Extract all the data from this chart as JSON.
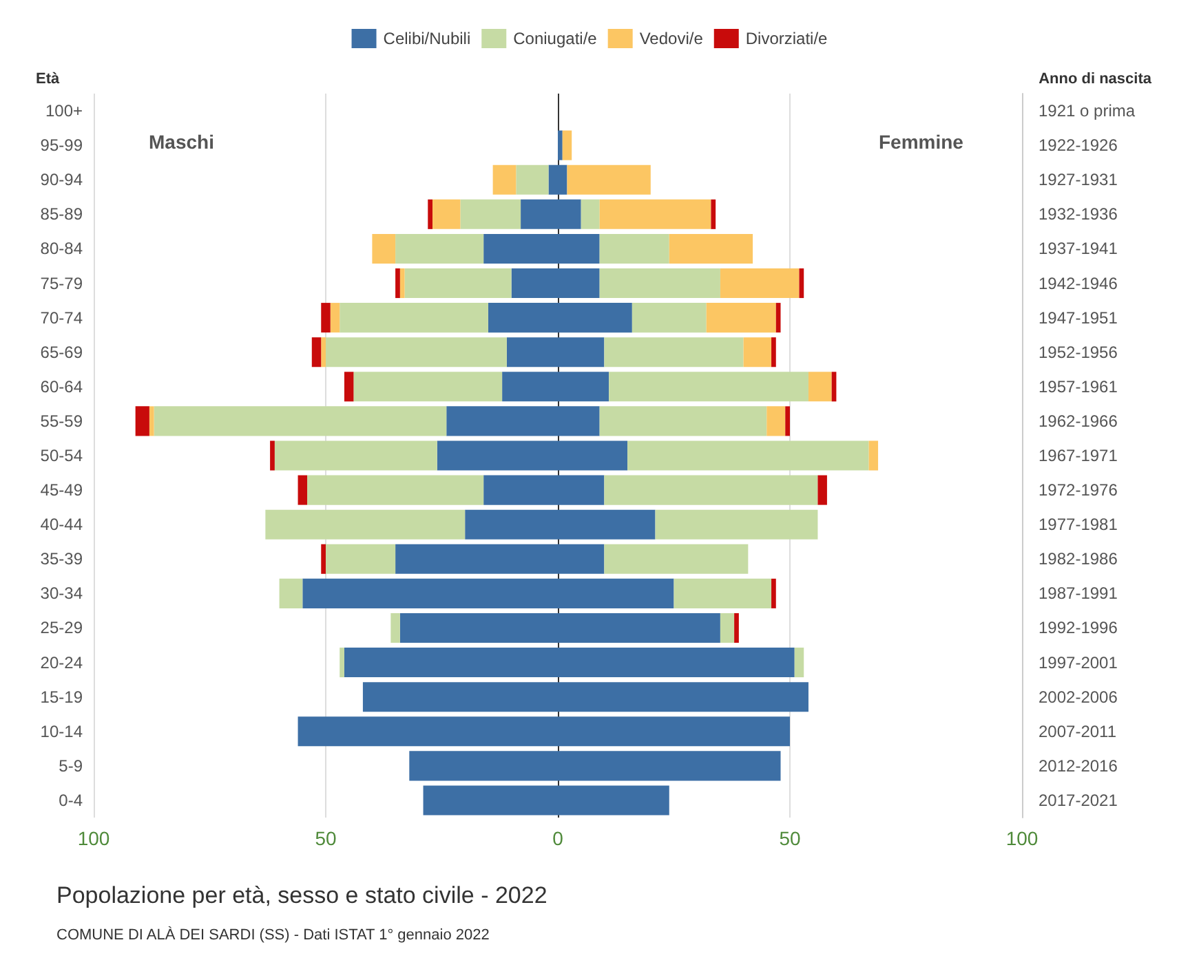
{
  "chart_data": {
    "type": "bar",
    "orientation": "horizontal",
    "stacked": true,
    "title": "Popolazione per età, sesso e stato civile - 2022",
    "subtitle": "COMUNE DI ALÀ DEI SARDI (SS) - Dati ISTAT 1° gennaio 2022",
    "ylabel": "Età",
    "y2label": "Anno di nascita",
    "annotations": [
      "Maschi",
      "Femmine"
    ],
    "categories": [
      "100+",
      "95-99",
      "90-94",
      "85-89",
      "80-84",
      "75-79",
      "70-74",
      "65-69",
      "60-64",
      "55-59",
      "50-54",
      "45-49",
      "40-44",
      "35-39",
      "30-34",
      "25-29",
      "20-24",
      "15-19",
      "10-14",
      "5-9",
      "0-4"
    ],
    "y2_categories": [
      "1921 o prima",
      "1922-1926",
      "1927-1931",
      "1932-1936",
      "1937-1941",
      "1942-1946",
      "1947-1951",
      "1952-1956",
      "1957-1961",
      "1962-1966",
      "1967-1971",
      "1972-1976",
      "1977-1981",
      "1982-1986",
      "1987-1991",
      "1992-1996",
      "1997-2001",
      "2002-2006",
      "2007-2011",
      "2012-2016",
      "2017-2021"
    ],
    "series": [
      {
        "name": "Celibi/Nubili",
        "color": "#3d6fa5",
        "values": [
          0,
          0,
          -2,
          -8,
          -16,
          -10,
          -15,
          -11,
          -12,
          -24,
          -26,
          -16,
          -20,
          -35,
          -55,
          -34,
          -46,
          -42,
          -56,
          -32,
          -29
        ]
      },
      {
        "name": "Coniugati/e",
        "color": "#c6dba4",
        "values": [
          0,
          0,
          -7,
          -13,
          -19,
          -23,
          -32,
          -39,
          -32,
          -63,
          -35,
          -38,
          -43,
          -15,
          -5,
          -2,
          -1,
          0,
          0,
          0,
          0
        ]
      },
      {
        "name": "Vedovi/e",
        "color": "#fcc663",
        "values": [
          0,
          0,
          -5,
          -6,
          -5,
          -1,
          -2,
          -1,
          0,
          -1,
          0,
          0,
          0,
          0,
          0,
          0,
          0,
          0,
          0,
          0,
          0
        ]
      },
      {
        "name": "Divorziati/e",
        "color": "#c80b0b",
        "values": [
          0,
          0,
          0,
          -1,
          0,
          -1,
          -2,
          -2,
          -2,
          -3,
          -1,
          -2,
          0,
          -1,
          0,
          0,
          0,
          0,
          0,
          0,
          0
        ]
      },
      {
        "color": "#3d6fa5",
        "values": [
          0,
          1,
          2,
          5,
          9,
          9,
          16,
          10,
          11,
          9,
          15,
          10,
          21,
          10,
          25,
          35,
          51,
          54,
          50,
          48,
          24
        ]
      },
      {
        "color": "#c6dba4",
        "values": [
          0,
          0,
          0,
          4,
          15,
          26,
          16,
          30,
          43,
          36,
          52,
          46,
          35,
          31,
          21,
          3,
          2,
          0,
          0,
          0,
          0
        ]
      },
      {
        "color": "#fcc663",
        "values": [
          0,
          2,
          18,
          24,
          18,
          17,
          15,
          6,
          5,
          4,
          2,
          0,
          0,
          0,
          0,
          0,
          0,
          0,
          0,
          0,
          0
        ]
      },
      {
        "color": "#c80b0b",
        "values": [
          0,
          0,
          0,
          1,
          0,
          1,
          1,
          1,
          1,
          1,
          0,
          2,
          0,
          0,
          1,
          1,
          0,
          0,
          0,
          0,
          0
        ]
      }
    ],
    "xlim": [
      -100,
      100
    ],
    "xticks": [
      {
        "value": -100,
        "label": "100"
      },
      {
        "value": -50,
        "label": "50"
      },
      0,
      50,
      100
    ],
    "grid": "x",
    "legend": "top"
  }
}
